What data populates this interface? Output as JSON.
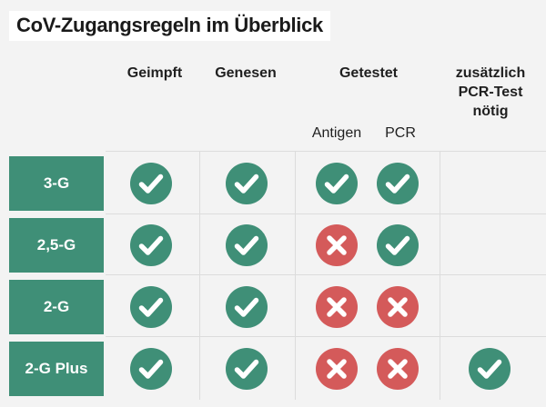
{
  "title": "CoV-Zugangsregeln im Überblick",
  "columns": {
    "geimpft": "Geimpft",
    "genesen": "Genesen",
    "getestet": "Getestet",
    "antigen": "Antigen",
    "pcr": "PCR",
    "extra_line1": "zusätzlich",
    "extra_line2": "PCR-Test",
    "extra_line3": "nötig"
  },
  "rows": [
    {
      "label": "3-G",
      "cells": [
        "check",
        "check",
        "check",
        "check",
        "none"
      ]
    },
    {
      "label": "2,5-G",
      "cells": [
        "check",
        "check",
        "cross",
        "check",
        "none"
      ]
    },
    {
      "label": "2-G",
      "cells": [
        "check",
        "check",
        "cross",
        "cross",
        "none"
      ]
    },
    {
      "label": "2-G Plus",
      "cells": [
        "check",
        "check",
        "cross",
        "cross",
        "check"
      ]
    }
  ],
  "colors": {
    "check": "#3f8f77",
    "cross": "#d45a5a",
    "row_label": "#3f8f77"
  },
  "icons": {
    "check": "checkmark-circle",
    "cross": "cross-circle"
  }
}
